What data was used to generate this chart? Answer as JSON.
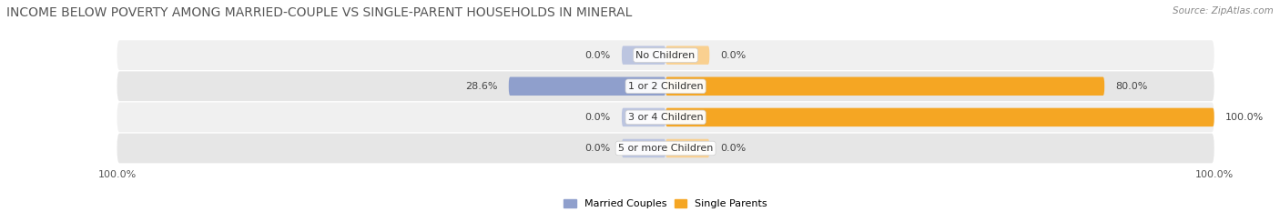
{
  "title": "INCOME BELOW POVERTY AMONG MARRIED-COUPLE VS SINGLE-PARENT HOUSEHOLDS IN MINERAL",
  "source_text": "Source: ZipAtlas.com",
  "categories": [
    "No Children",
    "1 or 2 Children",
    "3 or 4 Children",
    "5 or more Children"
  ],
  "married_values": [
    0.0,
    28.6,
    0.0,
    0.0
  ],
  "single_values": [
    0.0,
    80.0,
    100.0,
    0.0
  ],
  "married_color": "#8F9FCC",
  "single_color": "#F5A623",
  "married_stub_color": "#BCC5E0",
  "single_stub_color": "#F9D090",
  "row_bg_color_odd": "#F0F0F0",
  "row_bg_color_even": "#E6E6E6",
  "axis_label_left": "100.0%",
  "axis_label_right": "100.0%",
  "legend_married": "Married Couples",
  "legend_single": "Single Parents",
  "title_fontsize": 10,
  "label_fontsize": 8,
  "source_fontsize": 7.5,
  "max_value": 100.0,
  "stub_size": 8.0
}
